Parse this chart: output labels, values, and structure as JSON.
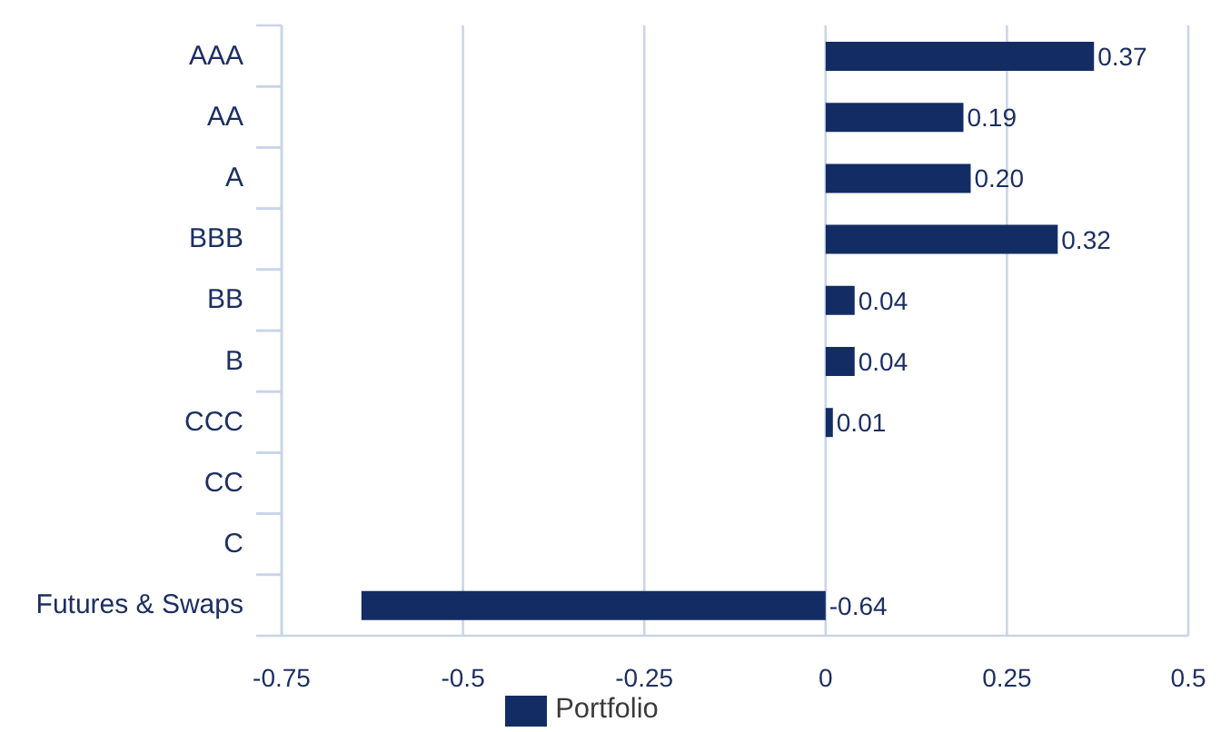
{
  "chart_data": {
    "type": "bar",
    "orientation": "horizontal",
    "categories": [
      "AAA",
      "AA",
      "A",
      "BBB",
      "BB",
      "B",
      "CCC",
      "CC",
      "C",
      "Futures & Swaps"
    ],
    "series": [
      {
        "name": "Portfolio",
        "color": "#132d64",
        "values": [
          0.37,
          0.19,
          0.2,
          0.32,
          0.04,
          0.04,
          0.01,
          null,
          null,
          -0.64
        ],
        "value_labels": [
          "0.37",
          "0.19",
          "0.20",
          "0.32",
          "0.04",
          "0.04",
          "0.01",
          null,
          null,
          "-0.64"
        ]
      }
    ],
    "xlim": [
      -0.75,
      0.5
    ],
    "xticks": [
      -0.75,
      -0.5,
      -0.25,
      0,
      0.25,
      0.5
    ],
    "grid": "x",
    "legend": "bottom"
  }
}
